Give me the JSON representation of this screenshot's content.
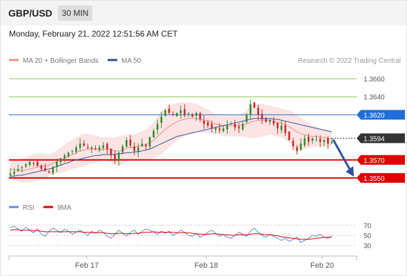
{
  "header": {
    "pair": "GBP/USD",
    "timeframe": "30 MIN"
  },
  "datetime": "Monday, February 21, 2022 12:51:56 AM CET",
  "copyright": "Research © 2022 Trading Central",
  "legend": [
    {
      "label": "MA 20 + Bollinger Bands",
      "color": "#f08c8c"
    },
    {
      "label": "MA 50",
      "color": "#2a5298"
    }
  ],
  "rsi_legend": [
    {
      "label": "RSI",
      "color": "#5b8dd9"
    },
    {
      "label": "9MA",
      "color": "#e00000"
    }
  ],
  "chart_data": [
    {
      "type": "candlestick",
      "ylim": [
        1.354,
        1.367
      ],
      "x_labels": [
        "Feb 17",
        "Feb 18",
        "Feb 20"
      ],
      "levels": [
        {
          "label": "1.3660",
          "value": 1.366,
          "color": "#8bc34a",
          "style": "line"
        },
        {
          "label": "1.3640",
          "value": 1.364,
          "color": "#8bc34a",
          "style": "line"
        },
        {
          "label": "1.3620",
          "value": 1.362,
          "color": "#1e6fd9",
          "style": "badge"
        },
        {
          "label": "1.3594",
          "value": 1.3594,
          "color": "#333333",
          "style": "badge"
        },
        {
          "label": "1.3570",
          "value": 1.357,
          "color": "#e00000",
          "style": "badge"
        },
        {
          "label": "1.3550",
          "value": 1.355,
          "color": "#e00000",
          "style": "badge"
        }
      ],
      "close_path": [
        1.3555,
        1.3557,
        1.356,
        1.3562,
        1.3565,
        1.3568,
        1.3566,
        1.3563,
        1.356,
        1.3558,
        1.3556,
        1.3562,
        1.3568,
        1.3572,
        1.3575,
        1.3578,
        1.358,
        1.3584,
        1.3588,
        1.3586,
        1.3583,
        1.3584,
        1.3582,
        1.3584,
        1.3586,
        1.3582,
        1.3575,
        1.357,
        1.3578,
        1.3585,
        1.3592,
        1.3586,
        1.358,
        1.3584,
        1.3588,
        1.3585,
        1.3595,
        1.3602,
        1.361,
        1.3618,
        1.3625,
        1.3622,
        1.362,
        1.3622,
        1.3625,
        1.362,
        1.3622,
        1.3618,
        1.3622,
        1.3615,
        1.361,
        1.3608,
        1.3605,
        1.3606,
        1.3603,
        1.3605,
        1.3608,
        1.361,
        1.3606,
        1.3605,
        1.361,
        1.362,
        1.3632,
        1.3628,
        1.362,
        1.3615,
        1.3612,
        1.3614,
        1.361,
        1.3605,
        1.3608,
        1.36,
        1.3592,
        1.3585,
        1.358,
        1.3588,
        1.3594,
        1.359,
        1.3594,
        1.3593,
        1.359,
        1.3592,
        1.3588,
        1.359
      ],
      "ma20": [
        1.356,
        1.3559,
        1.3558,
        1.3558,
        1.3559,
        1.356,
        1.3561,
        1.3562,
        1.3563,
        1.3563,
        1.3564,
        1.3566,
        1.3568,
        1.357,
        1.3572,
        1.3574,
        1.3576,
        1.3578,
        1.358,
        1.3581,
        1.3582,
        1.3582,
        1.3582,
        1.3582,
        1.3582,
        1.3582,
        1.3581,
        1.358,
        1.358,
        1.3581,
        1.3583,
        1.3584,
        1.3584,
        1.3585,
        1.3586,
        1.3587,
        1.3589,
        1.3592,
        1.3596,
        1.36,
        1.3604,
        1.3607,
        1.361,
        1.3612,
        1.3614,
        1.3615,
        1.3616,
        1.3616,
        1.3616,
        1.3615,
        1.3614,
        1.3613,
        1.3611,
        1.361,
        1.3609,
        1.3608,
        1.3608,
        1.3608,
        1.3608,
        1.3608,
        1.3609,
        1.361,
        1.3612,
        1.3613,
        1.3614,
        1.3614,
        1.3614,
        1.3614,
        1.3613,
        1.3612,
        1.3611,
        1.3609,
        1.3607,
        1.3604,
        1.3601,
        1.3599,
        1.3598,
        1.3597,
        1.3596,
        1.3596,
        1.3595,
        1.3595,
        1.3594,
        1.3594
      ],
      "ma50": [
        1.3552,
        1.3552,
        1.3553,
        1.3553,
        1.3554,
        1.3555,
        1.3556,
        1.3557,
        1.3558,
        1.3559,
        1.356,
        1.3561,
        1.3563,
        1.3564,
        1.3566,
        1.3567,
        1.3569,
        1.357,
        1.3571,
        1.3572,
        1.3573,
        1.3574,
        1.3575,
        1.3575,
        1.3576,
        1.3576,
        1.3576,
        1.3576,
        1.3577,
        1.3577,
        1.3578,
        1.3578,
        1.3579,
        1.3579,
        1.358,
        1.3581,
        1.3582,
        1.3584,
        1.3586,
        1.3588,
        1.359,
        1.3592,
        1.3594,
        1.3596,
        1.3597,
        1.3598,
        1.3599,
        1.36,
        1.3601,
        1.3602,
        1.3603,
        1.3604,
        1.3605,
        1.3606,
        1.3607,
        1.3608,
        1.3609,
        1.361,
        1.3611,
        1.3612,
        1.3613,
        1.3614,
        1.3615,
        1.3616,
        1.3616,
        1.3616,
        1.3616,
        1.3616,
        1.3615,
        1.3615,
        1.3614,
        1.3613,
        1.3612,
        1.3611,
        1.361,
        1.3609,
        1.3608,
        1.3607,
        1.3606,
        1.3605,
        1.3604,
        1.3603,
        1.3602,
        1.3601
      ],
      "bb_halfwidth": [
        0.001,
        0.0011,
        0.0012,
        0.0013,
        0.0014,
        0.0015,
        0.0015,
        0.0015,
        0.0014,
        0.0013,
        0.0012,
        0.0012,
        0.0013,
        0.0014,
        0.0015,
        0.0016,
        0.0016,
        0.0017,
        0.0018,
        0.0018,
        0.0017,
        0.0016,
        0.0015,
        0.0014,
        0.0013,
        0.0013,
        0.0014,
        0.0015,
        0.0016,
        0.0016,
        0.0015,
        0.0014,
        0.0014,
        0.0015,
        0.0016,
        0.0017,
        0.0018,
        0.002,
        0.0022,
        0.0024,
        0.0024,
        0.0023,
        0.0022,
        0.0021,
        0.002,
        0.0019,
        0.0018,
        0.0017,
        0.0016,
        0.0015,
        0.0014,
        0.0013,
        0.0012,
        0.0011,
        0.0011,
        0.0011,
        0.0012,
        0.0012,
        0.0012,
        0.0012,
        0.0013,
        0.0015,
        0.0018,
        0.0019,
        0.0019,
        0.0018,
        0.0017,
        0.0016,
        0.0016,
        0.0016,
        0.0016,
        0.0017,
        0.0018,
        0.0019,
        0.0019,
        0.0018,
        0.0016,
        0.0014,
        0.0012,
        0.0011,
        0.001,
        0.0009,
        0.0009,
        0.0009
      ],
      "forecast": {
        "from": 1.3594,
        "to": 1.355
      }
    },
    {
      "type": "line",
      "title": "RSI",
      "ylim": [
        20,
        80
      ],
      "y_ticks": [
        70,
        50,
        30
      ],
      "series": [
        {
          "name": "RSI",
          "color": "#5b8dd9",
          "values": [
            65,
            68,
            62,
            58,
            66,
            60,
            55,
            63,
            52,
            48,
            58,
            64,
            60,
            55,
            62,
            58,
            52,
            56,
            60,
            55,
            50,
            58,
            54,
            60,
            56,
            48,
            44,
            52,
            60,
            54,
            48,
            56,
            60,
            52,
            58,
            62,
            60,
            56,
            52,
            58,
            54,
            58,
            50,
            54,
            60,
            56,
            50,
            48,
            54,
            46,
            50,
            56,
            60,
            54,
            48,
            52,
            46,
            44,
            50,
            56,
            52,
            48,
            58,
            64,
            56,
            50,
            46,
            52,
            48,
            44,
            40,
            44,
            38,
            42,
            46,
            36,
            40,
            44,
            50,
            48,
            52,
            46,
            44,
            48
          ]
        },
        {
          "name": "9MA",
          "color": "#e00000",
          "values": [
            60,
            61,
            61,
            60,
            60,
            60,
            59,
            59,
            58,
            57,
            57,
            57,
            57,
            57,
            57,
            57,
            57,
            57,
            57,
            56,
            56,
            55,
            55,
            55,
            55,
            54,
            53,
            53,
            54,
            54,
            53,
            53,
            54,
            54,
            55,
            56,
            56,
            57,
            56,
            56,
            56,
            56,
            56,
            55,
            55,
            55,
            55,
            54,
            53,
            52,
            52,
            52,
            53,
            53,
            52,
            51,
            51,
            50,
            50,
            51,
            51,
            51,
            52,
            53,
            53,
            52,
            51,
            51,
            50,
            49,
            47,
            46,
            45,
            44,
            43,
            42,
            42,
            42,
            43,
            44,
            45,
            46,
            46,
            47
          ]
        }
      ]
    }
  ]
}
